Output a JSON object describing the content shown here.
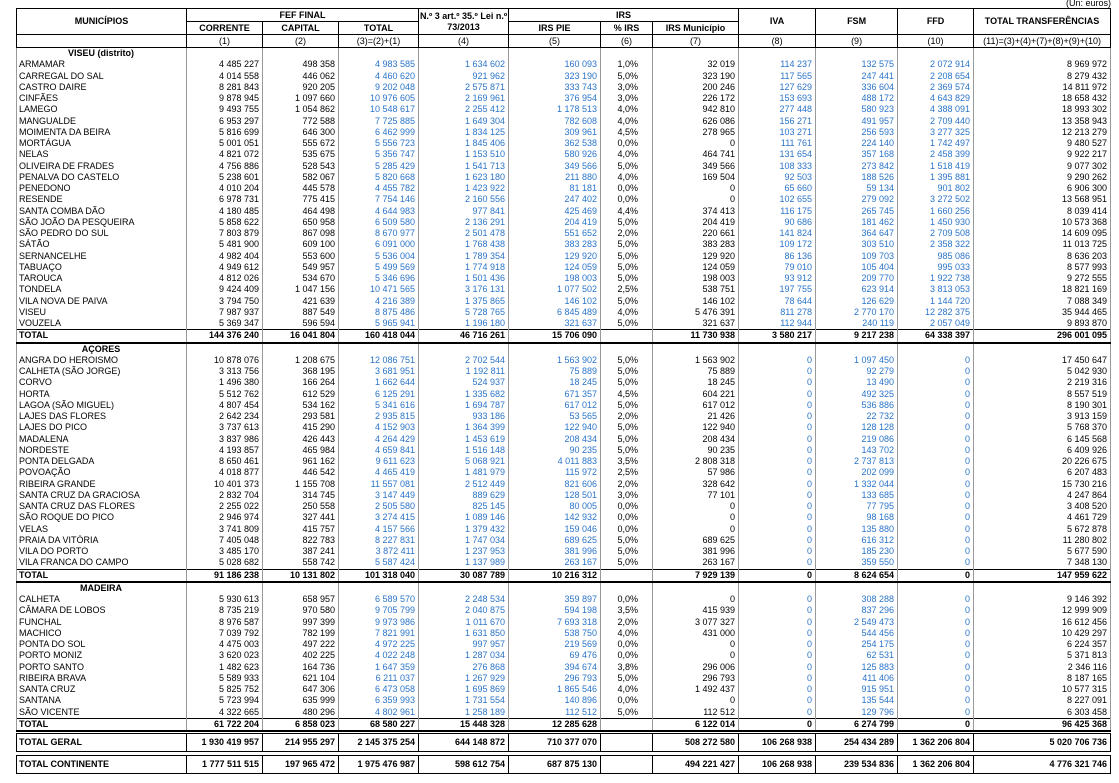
{
  "unit": "(Un: euros)",
  "header": {
    "municipios": "MUNICÍPIOS",
    "fef": "FEF FINAL",
    "art": "N.º 3 art.º 35.º Lei n.º 73/2013",
    "irs": "IRS",
    "iva": "IVA",
    "fsm": "FSM",
    "ffd": "FFD",
    "total": "TOTAL TRANSFERÊNCIAS",
    "sub": [
      "CORRENTE",
      "CAPITAL",
      "TOTAL",
      "IRS PIE",
      "% IRS",
      "IRS Município"
    ],
    "codes": [
      "(1)",
      "(2)",
      "(3)=(2)+(1)",
      "(4)",
      "(5)",
      "(6)",
      "(7)",
      "(8)",
      "(9)",
      "(10)",
      "(11)=(3)+(4)+(7)+(8)+(9)+(10)"
    ]
  },
  "sections": [
    {
      "name": "VISEU (distrito)",
      "rows": [
        [
          "ARMAMAR",
          "4 485 227",
          "498 358",
          "4 983 585",
          "1 634 602",
          "160 093",
          "1,0%",
          "32 019",
          "114 237",
          "132 575",
          "2 072 914",
          "8 969 972"
        ],
        [
          "CARREGAL DO SAL",
          "4 014 558",
          "446 062",
          "4 460 620",
          "921 962",
          "323 190",
          "5,0%",
          "323 190",
          "117 565",
          "247 441",
          "2 208 654",
          "8 279 432"
        ],
        [
          "CASTRO DAIRE",
          "8 281 843",
          "920 205",
          "9 202 048",
          "2 575 871",
          "333 743",
          "3,0%",
          "200 246",
          "127 629",
          "336 604",
          "2 369 574",
          "14 811 972"
        ],
        [
          "CINFÃES",
          "9 878 945",
          "1 097 660",
          "10 976 605",
          "2 169 961",
          "376 954",
          "3,0%",
          "226 172",
          "153 693",
          "488 172",
          "4 643 829",
          "18 658 432"
        ],
        [
          "LAMEGO",
          "9 493 755",
          "1 054 862",
          "10 548 617",
          "2 255 412",
          "1 178 513",
          "4,0%",
          "942 810",
          "277 448",
          "580 923",
          "4 388 091",
          "18 993 302"
        ],
        [
          "MANGUALDE",
          "6 953 297",
          "772 588",
          "7 725 885",
          "1 649 304",
          "782 608",
          "4,0%",
          "626 086",
          "156 271",
          "491 957",
          "2 709 440",
          "13 358 943"
        ],
        [
          "MOIMENTA DA BEIRA",
          "5 816 699",
          "646 300",
          "6 462 999",
          "1 834 125",
          "309 961",
          "4,5%",
          "278 965",
          "103 271",
          "256 593",
          "3 277 325",
          "12 213 279"
        ],
        [
          "MORTÁGUA",
          "5 001 051",
          "555 672",
          "5 556 723",
          "1 845 406",
          "362 538",
          "0,0%",
          "0",
          "111 761",
          "224 140",
          "1 742 497",
          "9 480 527"
        ],
        [
          "NELAS",
          "4 821 072",
          "535 675",
          "5 356 747",
          "1 153 510",
          "580 926",
          "4,0%",
          "464 741",
          "131 654",
          "357 168",
          "2 458 399",
          "9 922 217"
        ],
        [
          "OLIVEIRA DE FRADES",
          "4 756 886",
          "528 543",
          "5 285 429",
          "1 541 713",
          "349 566",
          "5,0%",
          "349 566",
          "108 333",
          "273 842",
          "1 518 419",
          "9 077 302"
        ],
        [
          "PENALVA DO CASTELO",
          "5 238 601",
          "582 067",
          "5 820 668",
          "1 623 180",
          "211 880",
          "4,0%",
          "169 504",
          "92 503",
          "188 526",
          "1 395 881",
          "9 290 262"
        ],
        [
          "PENEDONO",
          "4 010 204",
          "445 578",
          "4 455 782",
          "1 423 922",
          "81 181",
          "0,0%",
          "0",
          "65 660",
          "59 134",
          "901 802",
          "6 906 300"
        ],
        [
          "RESENDE",
          "6 978 731",
          "775 415",
          "7 754 146",
          "2 160 556",
          "247 402",
          "0,0%",
          "0",
          "102 655",
          "279 092",
          "3 272 502",
          "13 568 951"
        ],
        [
          "SANTA COMBA DÃO",
          "4 180 485",
          "464 498",
          "4 644 983",
          "977 841",
          "425 469",
          "4,4%",
          "374 413",
          "116 175",
          "265 745",
          "1 660 256",
          "8 039 414"
        ],
        [
          "SÃO JOÃO DA PESQUEIRA",
          "5 858 622",
          "650 958",
          "6 509 580",
          "2 136 291",
          "204 419",
          "5,0%",
          "204 419",
          "90 686",
          "181 462",
          "1 450 930",
          "10 573 368"
        ],
        [
          "SÃO PEDRO DO SUL",
          "7 803 879",
          "867 098",
          "8 670 977",
          "2 501 478",
          "551 652",
          "2,0%",
          "220 661",
          "141 824",
          "364 647",
          "2 709 508",
          "14 609 095"
        ],
        [
          "SÁTÃO",
          "5 481 900",
          "609 100",
          "6 091 000",
          "1 768 438",
          "383 283",
          "5,0%",
          "383 283",
          "109 172",
          "303 510",
          "2 358 322",
          "11 013 725"
        ],
        [
          "SERNANCELHE",
          "4 982 404",
          "553 600",
          "5 536 004",
          "1 789 354",
          "129 920",
          "5,0%",
          "129 920",
          "86 136",
          "109 703",
          "985 086",
          "8 636 203"
        ],
        [
          "TABUAÇO",
          "4 949 612",
          "549 957",
          "5 499 569",
          "1 774 918",
          "124 059",
          "5,0%",
          "124 059",
          "79 010",
          "105 404",
          "995 033",
          "8 577 993"
        ],
        [
          "TAROUCA",
          "4 812 026",
          "534 670",
          "5 346 696",
          "1 501 436",
          "198 003",
          "5,0%",
          "198 003",
          "93 912",
          "209 770",
          "1 922 738",
          "9 272 555"
        ],
        [
          "TONDELA",
          "9 424 409",
          "1 047 156",
          "10 471 565",
          "3 176 131",
          "1 077 502",
          "2,5%",
          "538 751",
          "197 755",
          "623 914",
          "3 813 053",
          "18 821 169"
        ],
        [
          "VILA NOVA DE PAIVA",
          "3 794 750",
          "421 639",
          "4 216 389",
          "1 375 865",
          "146 102",
          "5,0%",
          "146 102",
          "78 644",
          "126 629",
          "1 144 720",
          "7 088 349"
        ],
        [
          "VISEU",
          "7 987 937",
          "887 549",
          "8 875 486",
          "5 728 765",
          "6 845 489",
          "4,0%",
          "5 476 391",
          "811 278",
          "2 770 170",
          "12 282 375",
          "35 944 465"
        ],
        [
          "VOUZELA",
          "5 369 347",
          "596 594",
          "5 965 941",
          "1 196 180",
          "321 637",
          "5,0%",
          "321 637",
          "112 944",
          "240 119",
          "2 057 049",
          "9 893 870"
        ]
      ],
      "total": [
        "TOTAL",
        "144 376 240",
        "16 041 804",
        "160 418 044",
        "46 716 261",
        "15 706 090",
        null,
        "11 730 938",
        "3 580 217",
        "9 217 238",
        "64 338 397",
        "296 001 095"
      ]
    },
    {
      "name": "AÇORES",
      "rows": [
        [
          "ANGRA DO HEROISMO",
          "10 878 076",
          "1 208 675",
          "12 086 751",
          "2 702 544",
          "1 563 902",
          "5,0%",
          "1 563 902",
          "0",
          "1 097 450",
          "0",
          "17 450 647"
        ],
        [
          "CALHETA (SÃO JORGE)",
          "3 313 756",
          "368 195",
          "3 681 951",
          "1 192 811",
          "75 889",
          "5,0%",
          "75 889",
          "0",
          "92 279",
          "0",
          "5 042 930"
        ],
        [
          "CORVO",
          "1 496 380",
          "166 264",
          "1 662 644",
          "524 937",
          "18 245",
          "5,0%",
          "18 245",
          "0",
          "13 490",
          "0",
          "2 219 316"
        ],
        [
          "HORTA",
          "5 512 762",
          "612 529",
          "6 125 291",
          "1 335 682",
          "671 357",
          "4,5%",
          "604 221",
          "0",
          "492 325",
          "0",
          "8 557 519"
        ],
        [
          "LAGOA (SÃO MIGUEL)",
          "4 807 454",
          "534 162",
          "5 341 616",
          "1 694 787",
          "617 012",
          "5,0%",
          "617 012",
          "0",
          "536 886",
          "0",
          "8 190 301"
        ],
        [
          "LAJES DAS FLORES",
          "2 642 234",
          "293 581",
          "2 935 815",
          "933 186",
          "53 565",
          "2,0%",
          "21 426",
          "0",
          "22 732",
          "0",
          "3 913 159"
        ],
        [
          "LAJES DO PICO",
          "3 737 613",
          "415 290",
          "4 152 903",
          "1 364 399",
          "122 940",
          "5,0%",
          "122 940",
          "0",
          "128 128",
          "0",
          "5 768 370"
        ],
        [
          "MADALENA",
          "3 837 986",
          "426 443",
          "4 264 429",
          "1 453 619",
          "208 434",
          "5,0%",
          "208 434",
          "0",
          "219 086",
          "0",
          "6 145 568"
        ],
        [
          "NORDESTE",
          "4 193 857",
          "465 984",
          "4 659 841",
          "1 516 148",
          "90 235",
          "5,0%",
          "90 235",
          "0",
          "143 702",
          "0",
          "6 409 926"
        ],
        [
          "PONTA DELGADA",
          "8 650 461",
          "961 162",
          "9 611 623",
          "5 068 921",
          "4 011 883",
          "3,5%",
          "2 808 318",
          "0",
          "2 737 813",
          "0",
          "20 226 675"
        ],
        [
          "POVOAÇÃO",
          "4 018 877",
          "446 542",
          "4 465 419",
          "1 481 979",
          "115 972",
          "2,5%",
          "57 986",
          "0",
          "202 099",
          "0",
          "6 207 483"
        ],
        [
          "RIBEIRA GRANDE",
          "10 401 373",
          "1 155 708",
          "11 557 081",
          "2 512 449",
          "821 606",
          "2,0%",
          "328 642",
          "0",
          "1 332 044",
          "0",
          "15 730 216"
        ],
        [
          "SANTA CRUZ DA GRACIOSA",
          "2 832 704",
          "314 745",
          "3 147 449",
          "889 629",
          "128 501",
          "3,0%",
          "77 101",
          "0",
          "133 685",
          "0",
          "4 247 864"
        ],
        [
          "SANTA CRUZ DAS FLORES",
          "2 255 022",
          "250 558",
          "2 505 580",
          "825 145",
          "80 005",
          "0,0%",
          "0",
          "0",
          "77 795",
          "0",
          "3 408 520"
        ],
        [
          "SÃO ROQUE DO PICO",
          "2 946 974",
          "327 441",
          "3 274 415",
          "1 089 146",
          "142 932",
          "0,0%",
          "0",
          "0",
          "98 168",
          "0",
          "4 461 729"
        ],
        [
          "VELAS",
          "3 741 809",
          "415 757",
          "4 157 566",
          "1 379 432",
          "159 046",
          "0,0%",
          "0",
          "0",
          "135 880",
          "0",
          "5 672 878"
        ],
        [
          "PRAIA DA VITÓRIA",
          "7 405 048",
          "822 783",
          "8 227 831",
          "1 747 034",
          "689 625",
          "5,0%",
          "689 625",
          "0",
          "616 312",
          "0",
          "11 280 802"
        ],
        [
          "VILA DO PORTO",
          "3 485 170",
          "387 241",
          "3 872 411",
          "1 237 953",
          "381 996",
          "5,0%",
          "381 996",
          "0",
          "185 230",
          "0",
          "5 677 590"
        ],
        [
          "VILA FRANCA DO CAMPO",
          "5 028 682",
          "558 742",
          "5 587 424",
          "1 137 989",
          "263 167",
          "5,0%",
          "263 167",
          "0",
          "359 550",
          "0",
          "7 348 130"
        ]
      ],
      "total": [
        "TOTAL",
        "91 186 238",
        "10 131 802",
        "101 318 040",
        "30 087 789",
        "10 216 312",
        null,
        "7 929 139",
        "0",
        "8 624 654",
        "0",
        "147 959 622"
      ]
    },
    {
      "name": "MADEIRA",
      "rows": [
        [
          "CALHETA",
          "5 930 613",
          "658 957",
          "6 589 570",
          "2 248 534",
          "359 897",
          "0,0%",
          "0",
          "0",
          "308 288",
          "0",
          "9 146 392"
        ],
        [
          "CÂMARA DE LOBOS",
          "8 735 219",
          "970 580",
          "9 705 799",
          "2 040 875",
          "594 198",
          "3,5%",
          "415 939",
          "0",
          "837 296",
          "0",
          "12 999 909"
        ],
        [
          "FUNCHAL",
          "8 976 587",
          "997 399",
          "9 973 986",
          "1 011 670",
          "7 693 318",
          "2,0%",
          "3 077 327",
          "0",
          "2 549 473",
          "0",
          "16 612 456"
        ],
        [
          "MACHICO",
          "7 039 792",
          "782 199",
          "7 821 991",
          "1 631 850",
          "538 750",
          "4,0%",
          "431 000",
          "0",
          "544 456",
          "0",
          "10 429 297"
        ],
        [
          "PONTA DO SOL",
          "4 475 003",
          "497 222",
          "4 972 225",
          "997 957",
          "219 569",
          "0,0%",
          "0",
          "0",
          "254 175",
          "0",
          "6 224 357"
        ],
        [
          "PORTO MONIZ",
          "3 620 023",
          "402 225",
          "4 022 248",
          "1 287 034",
          "69 476",
          "0,0%",
          "0",
          "0",
          "62 531",
          "0",
          "5 371 813"
        ],
        [
          "PORTO SANTO",
          "1 482 623",
          "164 736",
          "1 647 359",
          "276 868",
          "394 674",
          "3,8%",
          "296 006",
          "0",
          "125 883",
          "0",
          "2 346 116"
        ],
        [
          "RIBEIRA BRAVA",
          "5 589 933",
          "621 104",
          "6 211 037",
          "1 267 929",
          "296 793",
          "5,0%",
          "296 793",
          "0",
          "411 406",
          "0",
          "8 187 165"
        ],
        [
          "SANTA CRUZ",
          "5 825 752",
          "647 306",
          "6 473 058",
          "1 695 869",
          "1 865 546",
          "4,0%",
          "1 492 437",
          "0",
          "915 951",
          "0",
          "10 577 315"
        ],
        [
          "SANTANA",
          "5 723 994",
          "635 999",
          "6 359 993",
          "1 731 554",
          "140 896",
          "0,0%",
          "0",
          "0",
          "135 544",
          "0",
          "8 227 091"
        ],
        [
          "SÃO VICENTE",
          "4 322 665",
          "480 296",
          "4 802 961",
          "1 258 189",
          "112 512",
          "5,0%",
          "112 512",
          "0",
          "129 796",
          "0",
          "6 303 458"
        ]
      ],
      "total": [
        "TOTAL",
        "61 722 204",
        "6 858 023",
        "68 580 227",
        "15 448 328",
        "12 285 628",
        null,
        "6 122 014",
        "0",
        "6 274 799",
        "0",
        "96 425 368"
      ]
    }
  ],
  "grand": [
    [
      "TOTAL GERAL",
      "1 930 419 957",
      "214 955 297",
      "2 145 375 254",
      "644 148 872",
      "710 377 070",
      null,
      "508 272 580",
      "106 268 938",
      "254 434 289",
      "1 362 206 804",
      "5 020 706 736"
    ],
    [
      "TOTAL CONTINENTE",
      "1 777 511 515",
      "197 965 472",
      "1 975 476 987",
      "598 612 754",
      "687 875 130",
      null,
      "494 221 427",
      "106 268 938",
      "239 534 836",
      "1 362 206 804",
      "4 776 321 746"
    ]
  ]
}
